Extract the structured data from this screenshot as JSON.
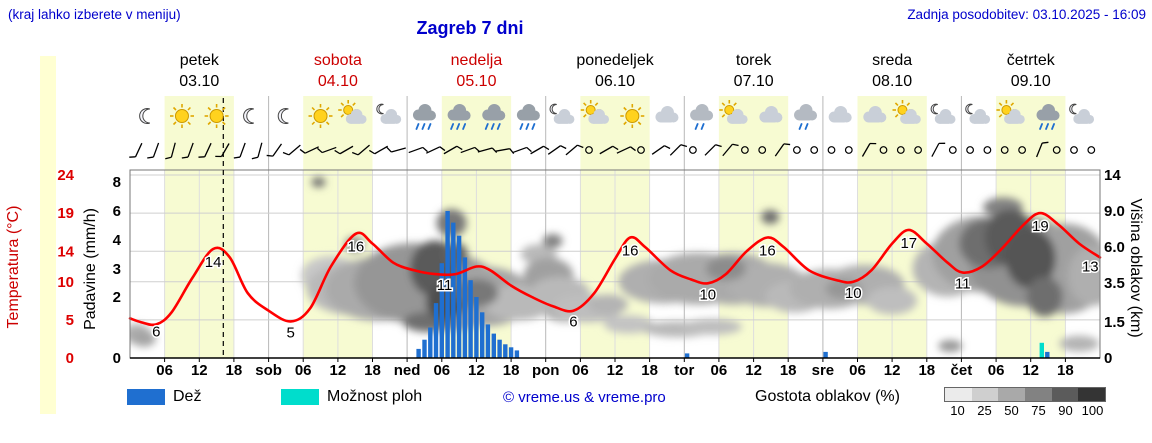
{
  "header": {
    "hint": "(kraj lahko izberete v meniju)",
    "title": "Zagreb 7 dni",
    "updated": "Zadnja posodobitev: 03.10.2025 - 16:09"
  },
  "axes": {
    "temp_label": "Temperatura (°C)",
    "precip_label": "Padavine (mm/h)",
    "cloud_label": "Višina oblakov (km)",
    "temp_ticks": [
      24,
      19,
      14,
      10,
      5,
      0
    ],
    "precip_ticks": [
      8,
      6,
      4,
      3,
      2,
      0
    ],
    "cloud_ticks": [
      "14",
      "9.0",
      "6.0",
      "3.5",
      "1.5",
      "0"
    ]
  },
  "legend": {
    "rain_label": "Dež",
    "showers_label": "Možnost ploh",
    "copyright": "© vreme.us & vreme.pro",
    "cloud_density_label": "Gostota oblakov (%)",
    "density_ticks": [
      "10",
      "25",
      "50",
      "75",
      "90",
      "100"
    ],
    "density_colors": [
      "#ebebeb",
      "#cfcfcf",
      "#a9a9a9",
      "#828282",
      "#5b5b5b",
      "#343434"
    ],
    "rain_color": "#1f6fd0",
    "showers_color": "#00ddcc"
  },
  "chart_data": {
    "type": "line",
    "title": "Zagreb 7 dni",
    "x_unit": "7 days, hourly",
    "now_frac": 0.673,
    "days": [
      {
        "name": "petek",
        "date": "03.10",
        "color": "#000000"
      },
      {
        "name": "sobota",
        "date": "04.10",
        "color": "#cc0000",
        "abbrev": "sob"
      },
      {
        "name": "nedelja",
        "date": "05.10",
        "color": "#cc0000",
        "abbrev": "ned"
      },
      {
        "name": "ponedeljek",
        "date": "06.10",
        "color": "#000000",
        "abbrev": "pon"
      },
      {
        "name": "torek",
        "date": "07.10",
        "color": "#000000",
        "abbrev": "tor"
      },
      {
        "name": "sreda",
        "date": "08.10",
        "color": "#000000",
        "abbrev": "sre"
      },
      {
        "name": "četrtek",
        "date": "09.10",
        "color": "#000000",
        "abbrev": "čet"
      }
    ],
    "hour_ticks": [
      "06",
      "12",
      "18"
    ],
    "day_band_color": "#f7fbd2",
    "temperature_c": {
      "ylim": [
        0,
        24
      ],
      "color": "#ff0000",
      "points": [
        [
          0,
          5.2
        ],
        [
          0.08,
          4.7
        ],
        [
          0.19,
          4.4
        ],
        [
          0.3,
          6
        ],
        [
          0.45,
          10.5
        ],
        [
          0.6,
          14.3
        ],
        [
          0.72,
          13.2
        ],
        [
          0.85,
          8.5
        ],
        [
          1,
          6.2
        ],
        [
          1.16,
          4.8
        ],
        [
          1.3,
          6.5
        ],
        [
          1.45,
          12
        ],
        [
          1.63,
          16.3
        ],
        [
          1.75,
          15
        ],
        [
          1.9,
          12.5
        ],
        [
          2.05,
          11.5
        ],
        [
          2.2,
          11
        ],
        [
          2.35,
          11
        ],
        [
          2.5,
          12
        ],
        [
          2.6,
          11.5
        ],
        [
          2.75,
          9.5
        ],
        [
          2.9,
          8
        ],
        [
          3.05,
          6.8
        ],
        [
          3.2,
          6.2
        ],
        [
          3.35,
          8.5
        ],
        [
          3.5,
          13
        ],
        [
          3.61,
          15.8
        ],
        [
          3.72,
          14.5
        ],
        [
          3.9,
          11.5
        ],
        [
          4.05,
          10.3
        ],
        [
          4.17,
          9.8
        ],
        [
          4.3,
          11
        ],
        [
          4.45,
          14
        ],
        [
          4.6,
          15.8
        ],
        [
          4.72,
          14.5
        ],
        [
          4.9,
          11.5
        ],
        [
          5.1,
          10.2
        ],
        [
          5.22,
          10
        ],
        [
          5.35,
          11.5
        ],
        [
          5.5,
          15
        ],
        [
          5.62,
          16.8
        ],
        [
          5.75,
          15
        ],
        [
          5.9,
          12.5
        ],
        [
          6.01,
          11.2
        ],
        [
          6.15,
          12
        ],
        [
          6.3,
          14.5
        ],
        [
          6.45,
          17.5
        ],
        [
          6.57,
          19
        ],
        [
          6.7,
          17.5
        ],
        [
          6.85,
          15
        ],
        [
          7,
          13.2
        ]
      ],
      "labels": [
        [
          "6",
          0.19,
          4.4,
          12
        ],
        [
          "14",
          0.6,
          14.3,
          18
        ],
        [
          "5",
          1.16,
          4.8,
          16
        ],
        [
          "16",
          1.63,
          16.3,
          18
        ],
        [
          "11",
          2.27,
          11,
          16
        ],
        [
          "6",
          3.2,
          6.2,
          16
        ],
        [
          "16",
          3.61,
          15.8,
          18
        ],
        [
          "10",
          4.17,
          9.8,
          16
        ],
        [
          "16",
          4.6,
          15.8,
          18
        ],
        [
          "10",
          5.22,
          10,
          16
        ],
        [
          "17",
          5.62,
          16.8,
          18
        ],
        [
          "11",
          6.01,
          11.2,
          16
        ],
        [
          "19",
          6.57,
          19,
          18
        ],
        [
          "13",
          6.93,
          13.2,
          14
        ]
      ]
    },
    "precip_mm_h": {
      "axis_breaks": [
        0,
        2,
        3,
        4,
        6,
        8
      ],
      "bars": [
        [
          2.083,
          0.3
        ],
        [
          2.125,
          0.6
        ],
        [
          2.167,
          1
        ],
        [
          2.208,
          1.8
        ],
        [
          2.25,
          3.2
        ],
        [
          2.292,
          6
        ],
        [
          2.333,
          5.2
        ],
        [
          2.375,
          4.3
        ],
        [
          2.417,
          3.4
        ],
        [
          2.458,
          2.6
        ],
        [
          2.5,
          2
        ],
        [
          2.542,
          1.5
        ],
        [
          2.583,
          1.1
        ],
        [
          2.625,
          0.8
        ],
        [
          2.667,
          0.6
        ],
        [
          2.708,
          0.45
        ],
        [
          2.75,
          0.35
        ],
        [
          2.792,
          0.25
        ],
        [
          4.02,
          0.15
        ],
        [
          5.02,
          0.2
        ],
        [
          6.62,
          0.2
        ]
      ],
      "showers_bars": [
        [
          6.58,
          0.5
        ]
      ]
    },
    "cloud_cover": {
      "height_axis_km": [
        0,
        1.5,
        3.5,
        6,
        9,
        14
      ],
      "blobs": [
        [
          0.05,
          1,
          14,
          10,
          175
        ],
        [
          0.1,
          0.8,
          12,
          8,
          165
        ],
        [
          1.45,
          4,
          30,
          20,
          200
        ],
        [
          1.6,
          3.2,
          45,
          26,
          185
        ],
        [
          1.8,
          3.2,
          55,
          32,
          170
        ],
        [
          2.05,
          3.5,
          60,
          40,
          150
        ],
        [
          2.3,
          3,
          55,
          38,
          150
        ],
        [
          2.55,
          2.8,
          50,
          30,
          165
        ],
        [
          2.8,
          2.5,
          35,
          18,
          185
        ],
        [
          2.95,
          5.5,
          18,
          10,
          185
        ],
        [
          3.02,
          4,
          25,
          18,
          160
        ],
        [
          3.1,
          3,
          30,
          16,
          185
        ],
        [
          3.15,
          2,
          22,
          10,
          175
        ],
        [
          3.3,
          2.2,
          35,
          14,
          190
        ],
        [
          3.45,
          2.4,
          20,
          10,
          180
        ],
        [
          3.6,
          1.4,
          25,
          9,
          195
        ],
        [
          3.85,
          3.6,
          45,
          22,
          175
        ],
        [
          3.95,
          1.2,
          35,
          8,
          185
        ],
        [
          4.1,
          3.8,
          50,
          26,
          170
        ],
        [
          4.2,
          1.3,
          30,
          8,
          190
        ],
        [
          4.35,
          3.8,
          45,
          26,
          170
        ],
        [
          4.6,
          3.4,
          40,
          22,
          175
        ],
        [
          4.8,
          2.8,
          30,
          16,
          185
        ],
        [
          5.05,
          3.2,
          40,
          20,
          175
        ],
        [
          5.3,
          3.4,
          40,
          20,
          175
        ],
        [
          5.5,
          2.6,
          25,
          14,
          190
        ],
        [
          5.9,
          4.5,
          35,
          28,
          180
        ],
        [
          6.15,
          5.5,
          50,
          38,
          160
        ],
        [
          6.45,
          5,
          55,
          45,
          145
        ],
        [
          6.75,
          4.5,
          45,
          45,
          160
        ],
        [
          6.95,
          4,
          25,
          30,
          175
        ],
        [
          6.85,
          0.6,
          20,
          8,
          180
        ],
        [
          1.36,
          13,
          7,
          5,
          110
        ],
        [
          1.62,
          6.2,
          10,
          8,
          140
        ],
        [
          2.15,
          1.5,
          25,
          10,
          110
        ],
        [
          2.2,
          4.5,
          25,
          28,
          90
        ],
        [
          2.28,
          2.5,
          20,
          18,
          80
        ],
        [
          2.32,
          8,
          15,
          14,
          120
        ],
        [
          2.35,
          5.5,
          12,
          12,
          100
        ],
        [
          2.5,
          3,
          22,
          14,
          120
        ],
        [
          3.05,
          6.5,
          10,
          7,
          130
        ],
        [
          4.3,
          4.5,
          20,
          12,
          140
        ],
        [
          4.62,
          8.5,
          9,
          7,
          110
        ],
        [
          5.15,
          3.2,
          18,
          10,
          150
        ],
        [
          5.92,
          0.5,
          12,
          6,
          150
        ],
        [
          6.2,
          6.3,
          30,
          25,
          110
        ],
        [
          6.3,
          9.5,
          20,
          10,
          130
        ],
        [
          6.35,
          6.8,
          25,
          28,
          90
        ],
        [
          6.5,
          5.2,
          25,
          30,
          85
        ],
        [
          6.6,
          2.8,
          18,
          20,
          110
        ]
      ]
    },
    "icons": [
      [
        "moon",
        "sun",
        "sun",
        "moon"
      ],
      [
        "moon",
        "sun",
        "sun-cloud",
        "cloud-moon"
      ],
      [
        "rain",
        "rain",
        "rain",
        "rain"
      ],
      [
        "cloud-moon",
        "sun-cloud",
        "sun",
        "cloud"
      ],
      [
        "drizzle",
        "sun-cloud",
        "cloud",
        "drizzle"
      ],
      [
        "cloud",
        "cloud",
        "sun-cloud",
        "cloud-moon"
      ],
      [
        "cloud-moon",
        "sun-cloud",
        "rain",
        "cloud-moon"
      ]
    ],
    "wind": [
      "b205",
      "b200",
      "b195",
      "b200",
      "b205",
      "b210",
      "b200",
      "b195",
      "b215",
      "b230",
      "b245",
      "b250",
      "b240",
      "b230",
      "b240",
      "b255",
      "b70",
      "b65",
      "b60",
      "b70",
      "b75",
      "b80",
      "b70",
      "b60",
      "b55",
      "b50",
      "c",
      "b60",
      "b65",
      "c",
      "b55",
      "b45",
      "c",
      "b45",
      "b40",
      "c",
      "c",
      "b35",
      "c",
      "c",
      "c",
      "c",
      "b30",
      "c",
      "c",
      "c",
      "b28",
      "c",
      "c",
      "c",
      "c",
      "c",
      "b22",
      "c",
      "c",
      "c"
    ]
  }
}
